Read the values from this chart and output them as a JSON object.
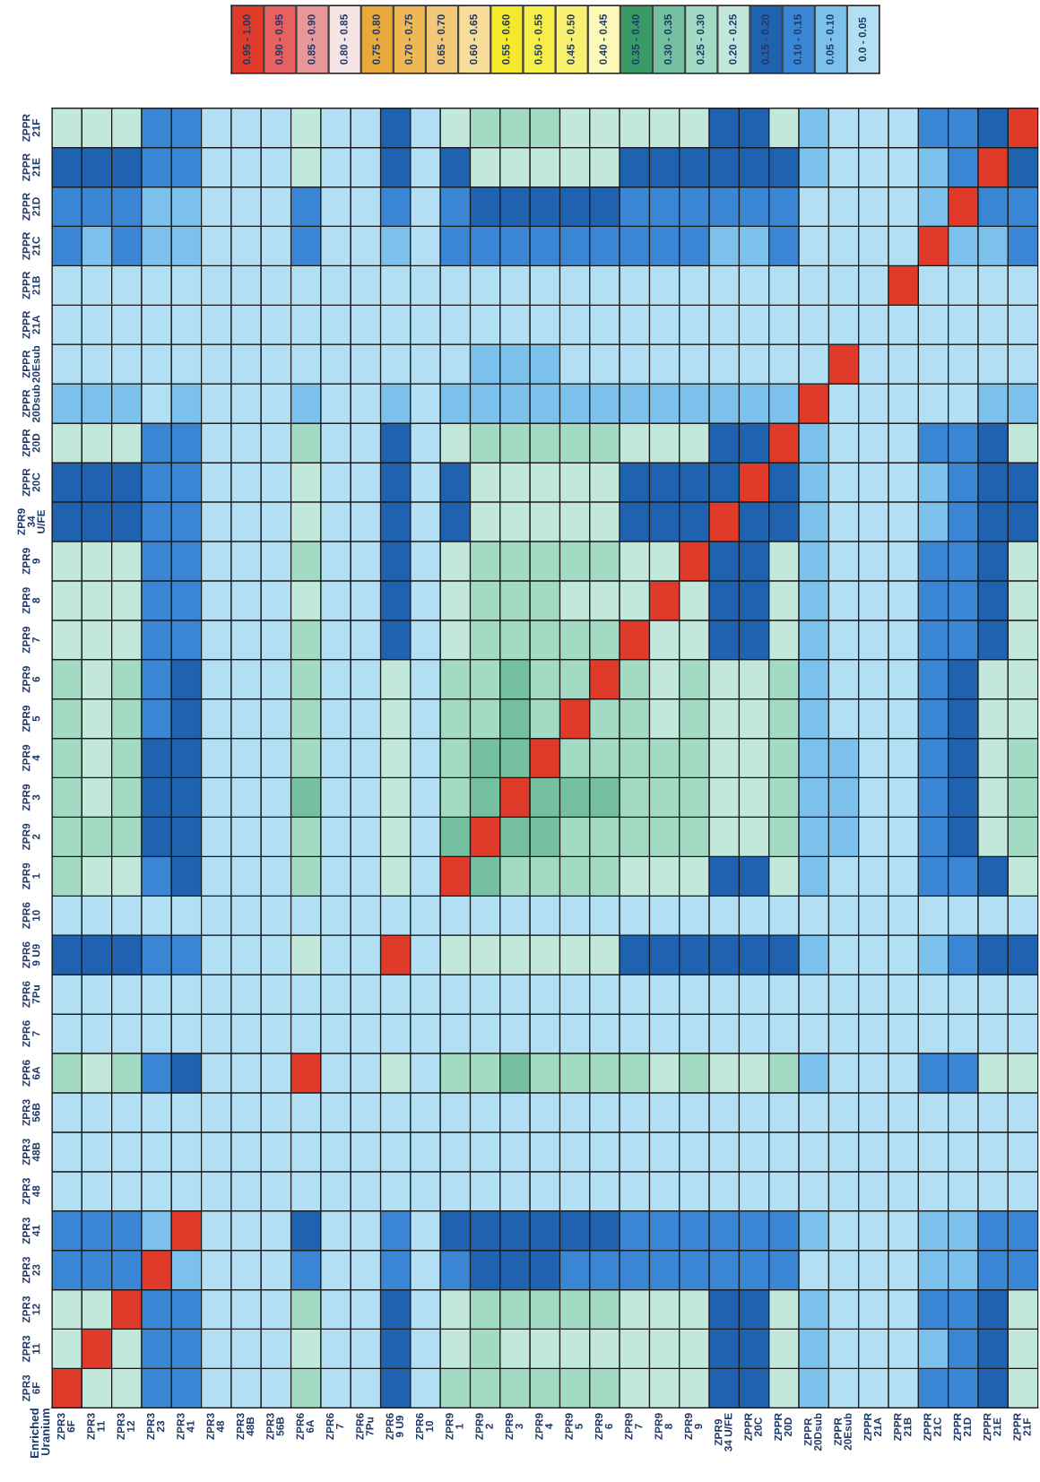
{
  "chart_data": {
    "type": "heatmap",
    "categories": [
      "ZPR3\n6F",
      "ZPR3\n11",
      "ZPR3\n12",
      "ZPR3\n23",
      "ZPR3\n41",
      "ZPR3\n48",
      "ZPR3\n48B",
      "ZPR3\n56B",
      "ZPR6\n6A",
      "ZPR6\n7",
      "ZPR6\n7Pu",
      "ZPR6\n9 U9",
      "ZPR6\n10",
      "ZPR9\n1",
      "ZPR9\n2",
      "ZPR9\n3",
      "ZPR9\n4",
      "ZPR9\n5",
      "ZPR9\n6",
      "ZPR9\n7",
      "ZPR9\n8",
      "ZPR9\n9",
      "ZPR9\n34 U/FE",
      "ZPPR\n20C",
      "ZPPR\n20D",
      "ZPPR\n20Dsub",
      "ZPPR\n20Esub",
      "ZPPR\n21A",
      "ZPPR\n21B",
      "ZPPR\n21C",
      "ZPPR\n21D",
      "ZPPR\n21E",
      "ZPPR\n21F"
    ],
    "y_categories": [
      "ZPPR\n21F",
      "ZPPR\n21E",
      "ZPPR\n21D",
      "ZPPR\n21C",
      "ZPPR\n21B",
      "ZPPR\n21A",
      "ZPPR\n20Esub",
      "ZPPR\n20Dsub",
      "ZPPR\n20D",
      "ZPPR\n20C",
      "ZPR9\n34\nU/FE",
      "ZPR9\n9",
      "ZPR9\n8",
      "ZPR9\n7",
      "ZPR9\n6",
      "ZPR9\n5",
      "ZPR9\n4",
      "ZPR9\n3",
      "ZPR9\n2",
      "ZPR9\n1",
      "ZPR6\n10",
      "ZPR6\n9 U9",
      "ZPR6\n7Pu",
      "ZPR6\n7",
      "ZPR6\n6A",
      "ZPR3\n56B",
      "ZPR3\n48B",
      "ZPR3\n48",
      "ZPR3\n41",
      "ZPR3\n23",
      "ZPR3\n12",
      "ZPR3\n11",
      "ZPR3\n6F"
    ],
    "cells": [
      [
        0.225,
        0.225,
        0.225,
        0.125,
        0.125,
        0.025,
        0.025,
        0.025,
        0.225,
        0.025,
        0.025,
        0.175,
        0.025,
        0.225,
        0.275,
        0.275,
        0.275,
        0.225,
        0.225,
        0.225,
        0.225,
        0.225,
        0.175,
        0.175,
        0.225,
        0.075,
        0.025,
        0.025,
        0.025,
        0.125,
        0.125,
        0.175,
        0.975
      ],
      [
        0.175,
        0.175,
        0.175,
        0.125,
        0.125,
        0.025,
        0.025,
        0.025,
        0.225,
        0.025,
        0.025,
        0.175,
        0.025,
        0.175,
        0.225,
        0.225,
        0.225,
        0.225,
        0.225,
        0.175,
        0.175,
        0.175,
        0.175,
        0.175,
        0.175,
        0.075,
        0.025,
        0.025,
        0.025,
        0.075,
        0.125,
        0.975,
        0.175
      ],
      [
        0.125,
        0.125,
        0.125,
        0.075,
        0.075,
        0.025,
        0.025,
        0.025,
        0.125,
        0.025,
        0.025,
        0.125,
        0.025,
        0.125,
        0.175,
        0.175,
        0.175,
        0.175,
        0.175,
        0.125,
        0.125,
        0.125,
        0.125,
        0.125,
        0.125,
        0.025,
        0.025,
        0.025,
        0.025,
        0.075,
        0.975,
        0.125,
        0.125
      ],
      [
        0.125,
        0.075,
        0.125,
        0.075,
        0.075,
        0.025,
        0.025,
        0.025,
        0.125,
        0.025,
        0.025,
        0.075,
        0.025,
        0.125,
        0.125,
        0.125,
        0.125,
        0.125,
        0.125,
        0.125,
        0.125,
        0.125,
        0.075,
        0.075,
        0.125,
        0.025,
        0.025,
        0.025,
        0.025,
        0.975,
        0.075,
        0.075,
        0.125
      ],
      [
        0.025,
        0.025,
        0.025,
        0.025,
        0.025,
        0.025,
        0.025,
        0.025,
        0.025,
        0.025,
        0.025,
        0.025,
        0.025,
        0.025,
        0.025,
        0.025,
        0.025,
        0.025,
        0.025,
        0.025,
        0.025,
        0.025,
        0.025,
        0.025,
        0.025,
        0.025,
        0.025,
        0.025,
        0.975,
        0.025,
        0.025,
        0.025,
        0.025
      ],
      [
        0.025,
        0.025,
        0.025,
        0.025,
        0.025,
        0.025,
        0.025,
        0.025,
        0.025,
        0.025,
        0.025,
        0.025,
        0.025,
        0.025,
        0.025,
        0.025,
        0.025,
        0.025,
        0.025,
        0.025,
        0.025,
        0.025,
        0.025,
        0.025,
        0.025,
        0.025,
        0.025,
        0.025,
        0.025,
        0.025,
        0.025,
        0.025,
        0.025
      ],
      [
        0.025,
        0.025,
        0.025,
        0.025,
        0.025,
        0.025,
        0.025,
        0.025,
        0.025,
        0.025,
        0.025,
        0.025,
        0.025,
        0.025,
        0.075,
        0.075,
        0.075,
        0.025,
        0.025,
        0.025,
        0.025,
        0.025,
        0.025,
        0.025,
        0.025,
        0.025,
        0.975,
        0.025,
        0.025,
        0.025,
        0.025,
        0.025,
        0.025
      ],
      [
        0.075,
        0.075,
        0.075,
        0.025,
        0.075,
        0.025,
        0.025,
        0.025,
        0.075,
        0.025,
        0.025,
        0.075,
        0.025,
        0.075,
        0.075,
        0.075,
        0.075,
        0.075,
        0.075,
        0.075,
        0.075,
        0.075,
        0.075,
        0.075,
        0.075,
        0.975,
        0.025,
        0.025,
        0.025,
        0.025,
        0.025,
        0.075,
        0.075
      ],
      [
        0.225,
        0.225,
        0.225,
        0.125,
        0.125,
        0.025,
        0.025,
        0.025,
        0.275,
        0.025,
        0.025,
        0.175,
        0.025,
        0.225,
        0.275,
        0.275,
        0.275,
        0.275,
        0.275,
        0.225,
        0.225,
        0.225,
        0.175,
        0.175,
        0.975,
        0.075,
        0.025,
        0.025,
        0.025,
        0.125,
        0.125,
        0.175,
        0.225
      ],
      [
        0.175,
        0.175,
        0.175,
        0.125,
        0.125,
        0.025,
        0.025,
        0.025,
        0.225,
        0.025,
        0.025,
        0.175,
        0.025,
        0.175,
        0.225,
        0.225,
        0.225,
        0.225,
        0.225,
        0.175,
        0.175,
        0.175,
        0.175,
        0.975,
        0.175,
        0.075,
        0.025,
        0.025,
        0.025,
        0.075,
        0.125,
        0.175,
        0.175
      ],
      [
        0.175,
        0.175,
        0.175,
        0.125,
        0.125,
        0.025,
        0.025,
        0.025,
        0.225,
        0.025,
        0.025,
        0.175,
        0.025,
        0.175,
        0.225,
        0.225,
        0.225,
        0.225,
        0.225,
        0.175,
        0.175,
        0.175,
        0.975,
        0.175,
        0.175,
        0.075,
        0.025,
        0.025,
        0.025,
        0.075,
        0.125,
        0.175,
        0.175
      ],
      [
        0.225,
        0.225,
        0.225,
        0.125,
        0.125,
        0.025,
        0.025,
        0.025,
        0.275,
        0.025,
        0.025,
        0.175,
        0.025,
        0.225,
        0.275,
        0.275,
        0.275,
        0.275,
        0.275,
        0.225,
        0.225,
        0.975,
        0.175,
        0.175,
        0.225,
        0.075,
        0.025,
        0.025,
        0.025,
        0.125,
        0.125,
        0.175,
        0.225
      ],
      [
        0.225,
        0.225,
        0.225,
        0.125,
        0.125,
        0.025,
        0.025,
        0.025,
        0.225,
        0.025,
        0.025,
        0.175,
        0.025,
        0.225,
        0.275,
        0.275,
        0.275,
        0.225,
        0.225,
        0.225,
        0.975,
        0.225,
        0.175,
        0.175,
        0.225,
        0.075,
        0.025,
        0.025,
        0.025,
        0.125,
        0.125,
        0.175,
        0.225
      ],
      [
        0.225,
        0.225,
        0.225,
        0.125,
        0.125,
        0.025,
        0.025,
        0.025,
        0.275,
        0.025,
        0.025,
        0.175,
        0.025,
        0.225,
        0.275,
        0.275,
        0.275,
        0.275,
        0.275,
        0.975,
        0.225,
        0.225,
        0.175,
        0.175,
        0.225,
        0.075,
        0.025,
        0.025,
        0.025,
        0.125,
        0.125,
        0.175,
        0.225
      ],
      [
        0.275,
        0.225,
        0.275,
        0.125,
        0.175,
        0.025,
        0.025,
        0.025,
        0.275,
        0.025,
        0.025,
        0.225,
        0.025,
        0.275,
        0.275,
        0.325,
        0.275,
        0.275,
        0.975,
        0.275,
        0.225,
        0.275,
        0.225,
        0.225,
        0.275,
        0.075,
        0.025,
        0.025,
        0.025,
        0.125,
        0.175,
        0.225,
        0.225
      ],
      [
        0.275,
        0.225,
        0.275,
        0.125,
        0.175,
        0.025,
        0.025,
        0.025,
        0.275,
        0.025,
        0.025,
        0.225,
        0.025,
        0.275,
        0.275,
        0.325,
        0.275,
        0.975,
        0.275,
        0.275,
        0.225,
        0.275,
        0.225,
        0.225,
        0.275,
        0.075,
        0.025,
        0.025,
        0.025,
        0.125,
        0.175,
        0.225,
        0.225
      ],
      [
        0.275,
        0.225,
        0.275,
        0.175,
        0.175,
        0.025,
        0.025,
        0.025,
        0.275,
        0.025,
        0.025,
        0.225,
        0.025,
        0.275,
        0.325,
        0.325,
        0.975,
        0.275,
        0.275,
        0.275,
        0.275,
        0.275,
        0.225,
        0.225,
        0.275,
        0.075,
        0.075,
        0.025,
        0.025,
        0.125,
        0.175,
        0.225,
        0.275
      ],
      [
        0.275,
        0.225,
        0.275,
        0.175,
        0.175,
        0.025,
        0.025,
        0.025,
        0.325,
        0.025,
        0.025,
        0.225,
        0.025,
        0.275,
        0.325,
        0.975,
        0.325,
        0.325,
        0.325,
        0.275,
        0.275,
        0.275,
        0.225,
        0.225,
        0.275,
        0.075,
        0.075,
        0.025,
        0.025,
        0.125,
        0.175,
        0.225,
        0.275
      ],
      [
        0.275,
        0.275,
        0.275,
        0.175,
        0.175,
        0.025,
        0.025,
        0.025,
        0.275,
        0.025,
        0.025,
        0.225,
        0.025,
        0.325,
        0.975,
        0.325,
        0.325,
        0.275,
        0.275,
        0.275,
        0.275,
        0.275,
        0.225,
        0.225,
        0.275,
        0.075,
        0.075,
        0.025,
        0.025,
        0.125,
        0.175,
        0.225,
        0.275
      ],
      [
        0.275,
        0.225,
        0.225,
        0.125,
        0.175,
        0.025,
        0.025,
        0.025,
        0.275,
        0.025,
        0.025,
        0.225,
        0.025,
        0.975,
        0.325,
        0.275,
        0.275,
        0.275,
        0.275,
        0.225,
        0.225,
        0.225,
        0.175,
        0.175,
        0.225,
        0.075,
        0.025,
        0.025,
        0.025,
        0.125,
        0.125,
        0.175,
        0.225
      ],
      [
        0.025,
        0.025,
        0.025,
        0.025,
        0.025,
        0.025,
        0.025,
        0.025,
        0.025,
        0.025,
        0.025,
        0.025,
        0.025,
        0.025,
        0.025,
        0.025,
        0.025,
        0.025,
        0.025,
        0.025,
        0.025,
        0.025,
        0.025,
        0.025,
        0.025,
        0.025,
        0.025,
        0.025,
        0.025,
        0.025,
        0.025,
        0.025,
        0.025
      ],
      [
        0.175,
        0.175,
        0.175,
        0.125,
        0.125,
        0.025,
        0.025,
        0.025,
        0.225,
        0.025,
        0.025,
        0.975,
        0.025,
        0.225,
        0.225,
        0.225,
        0.225,
        0.225,
        0.225,
        0.175,
        0.175,
        0.175,
        0.175,
        0.175,
        0.175,
        0.075,
        0.025,
        0.025,
        0.025,
        0.075,
        0.125,
        0.175,
        0.175
      ],
      [
        0.025,
        0.025,
        0.025,
        0.025,
        0.025,
        0.025,
        0.025,
        0.025,
        0.025,
        0.025,
        0.025,
        0.025,
        0.025,
        0.025,
        0.025,
        0.025,
        0.025,
        0.025,
        0.025,
        0.025,
        0.025,
        0.025,
        0.025,
        0.025,
        0.025,
        0.025,
        0.025,
        0.025,
        0.025,
        0.025,
        0.025,
        0.025,
        0.025
      ],
      [
        0.025,
        0.025,
        0.025,
        0.025,
        0.025,
        0.025,
        0.025,
        0.025,
        0.025,
        0.025,
        0.025,
        0.025,
        0.025,
        0.025,
        0.025,
        0.025,
        0.025,
        0.025,
        0.025,
        0.025,
        0.025,
        0.025,
        0.025,
        0.025,
        0.025,
        0.025,
        0.025,
        0.025,
        0.025,
        0.025,
        0.025,
        0.025,
        0.025
      ],
      [
        0.275,
        0.225,
        0.275,
        0.125,
        0.175,
        0.025,
        0.025,
        0.025,
        0.975,
        0.025,
        0.025,
        0.225,
        0.025,
        0.275,
        0.275,
        0.325,
        0.275,
        0.275,
        0.275,
        0.275,
        0.225,
        0.275,
        0.225,
        0.225,
        0.275,
        0.075,
        0.025,
        0.025,
        0.025,
        0.125,
        0.125,
        0.225,
        0.225
      ],
      [
        0.025,
        0.025,
        0.025,
        0.025,
        0.025,
        0.025,
        0.025,
        0.025,
        0.025,
        0.025,
        0.025,
        0.025,
        0.025,
        0.025,
        0.025,
        0.025,
        0.025,
        0.025,
        0.025,
        0.025,
        0.025,
        0.025,
        0.025,
        0.025,
        0.025,
        0.025,
        0.025,
        0.025,
        0.025,
        0.025,
        0.025,
        0.025,
        0.025
      ],
      [
        0.025,
        0.025,
        0.025,
        0.025,
        0.025,
        0.025,
        0.025,
        0.025,
        0.025,
        0.025,
        0.025,
        0.025,
        0.025,
        0.025,
        0.025,
        0.025,
        0.025,
        0.025,
        0.025,
        0.025,
        0.025,
        0.025,
        0.025,
        0.025,
        0.025,
        0.025,
        0.025,
        0.025,
        0.025,
        0.025,
        0.025,
        0.025,
        0.025
      ],
      [
        0.025,
        0.025,
        0.025,
        0.025,
        0.025,
        0.025,
        0.025,
        0.025,
        0.025,
        0.025,
        0.025,
        0.025,
        0.025,
        0.025,
        0.025,
        0.025,
        0.025,
        0.025,
        0.025,
        0.025,
        0.025,
        0.025,
        0.025,
        0.025,
        0.025,
        0.025,
        0.025,
        0.025,
        0.025,
        0.025,
        0.025,
        0.025,
        0.025
      ],
      [
        0.125,
        0.125,
        0.125,
        0.075,
        0.975,
        0.025,
        0.025,
        0.025,
        0.175,
        0.025,
        0.025,
        0.125,
        0.025,
        0.175,
        0.175,
        0.175,
        0.175,
        0.175,
        0.175,
        0.125,
        0.125,
        0.125,
        0.125,
        0.125,
        0.125,
        0.075,
        0.025,
        0.025,
        0.025,
        0.075,
        0.075,
        0.125,
        0.125
      ],
      [
        0.125,
        0.125,
        0.125,
        0.975,
        0.075,
        0.025,
        0.025,
        0.025,
        0.125,
        0.025,
        0.025,
        0.125,
        0.025,
        0.125,
        0.175,
        0.175,
        0.175,
        0.125,
        0.125,
        0.125,
        0.125,
        0.125,
        0.125,
        0.125,
        0.125,
        0.025,
        0.025,
        0.025,
        0.025,
        0.075,
        0.075,
        0.125,
        0.125
      ],
      [
        0.225,
        0.225,
        0.975,
        0.125,
        0.125,
        0.025,
        0.025,
        0.025,
        0.275,
        0.025,
        0.025,
        0.175,
        0.025,
        0.225,
        0.275,
        0.275,
        0.275,
        0.275,
        0.275,
        0.225,
        0.225,
        0.225,
        0.175,
        0.175,
        0.225,
        0.075,
        0.025,
        0.025,
        0.025,
        0.125,
        0.125,
        0.175,
        0.225
      ],
      [
        0.225,
        0.975,
        0.225,
        0.125,
        0.125,
        0.025,
        0.025,
        0.025,
        0.225,
        0.025,
        0.025,
        0.175,
        0.025,
        0.225,
        0.275,
        0.225,
        0.225,
        0.225,
        0.225,
        0.225,
        0.225,
        0.225,
        0.175,
        0.175,
        0.225,
        0.075,
        0.025,
        0.025,
        0.025,
        0.075,
        0.125,
        0.175,
        0.225
      ],
      [
        0.975,
        0.225,
        0.225,
        0.125,
        0.125,
        0.025,
        0.025,
        0.025,
        0.275,
        0.025,
        0.025,
        0.175,
        0.025,
        0.275,
        0.275,
        0.275,
        0.275,
        0.275,
        0.275,
        0.225,
        0.225,
        0.225,
        0.175,
        0.175,
        0.225,
        0.075,
        0.025,
        0.025,
        0.025,
        0.125,
        0.125,
        0.175,
        0.225
      ]
    ],
    "colors": [
      "#b3dff5",
      "#7cc0ec",
      "#3a86d4",
      "#1f62b0",
      "#c2e8dc",
      "#a3dac4",
      "#74c0a0",
      "#3a9a66",
      "#fcf8b8",
      "#f8f070",
      "#f8ee48",
      "#f6e82a",
      "#f7dc9a",
      "#f2c878",
      "#eeb854",
      "#e8a83a",
      "#f7e4e4",
      "#e89898",
      "#e86060",
      "#e03a2a"
    ],
    "clim": [
      0.0,
      1.0
    ],
    "cticks": [
      {
        "value": 0.025,
        "label": "0.0 - 0.05"
      },
      {
        "value": 0.075,
        "label": "0.05 - 0.10"
      },
      {
        "value": 0.125,
        "label": "0.10 - 0.15"
      },
      {
        "value": 0.175,
        "label": "0.15 - 0.20"
      },
      {
        "value": 0.225,
        "label": "0.20 - 0.25"
      },
      {
        "value": 0.275,
        "label": "0.25 - 0.30"
      },
      {
        "value": 0.325,
        "label": "0.30 - 0.35"
      },
      {
        "value": 0.375,
        "label": "0.35 - 0.40"
      },
      {
        "value": 0.425,
        "label": "0.40 - 0.45"
      },
      {
        "value": 0.475,
        "label": "0.45 - 0.50"
      },
      {
        "value": 0.525,
        "label": "0.50 - 0.55"
      },
      {
        "value": 0.575,
        "label": "0.55 - 0.60"
      },
      {
        "value": 0.625,
        "label": "0.60 - 0.65"
      },
      {
        "value": 0.675,
        "label": "0.65 - 0.70"
      },
      {
        "value": 0.725,
        "label": "0.70 - 0.75"
      },
      {
        "value": 0.775,
        "label": "0.75 - 0.80"
      },
      {
        "value": 0.825,
        "label": "0.80 - 0.85"
      },
      {
        "value": 0.875,
        "label": "0.85 - 0.90"
      },
      {
        "value": 0.925,
        "label": "0.90 - 0.95"
      },
      {
        "value": 0.975,
        "label": "0.95 - 1.00"
      }
    ],
    "annotations": [
      "Enriched\nUranium"
    ]
  }
}
